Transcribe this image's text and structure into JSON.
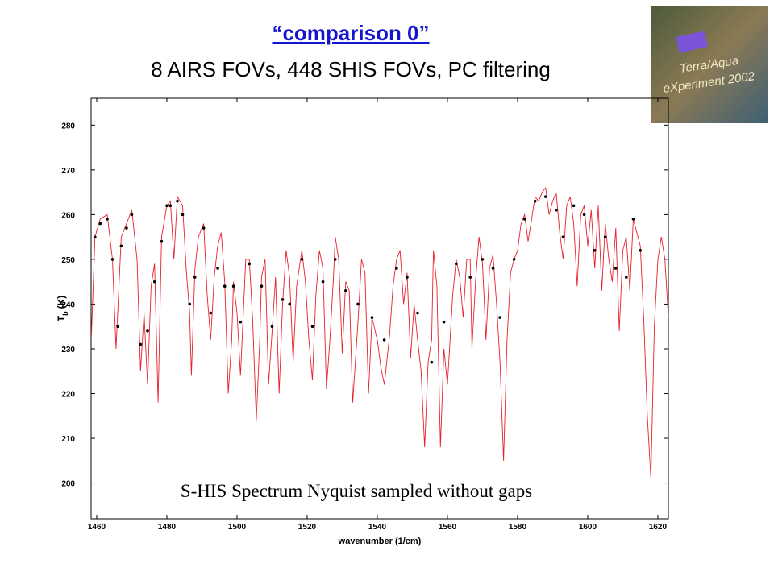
{
  "chart_data": {
    "type": "line",
    "title": "“comparison 0”",
    "subtitle": "8 AIRS FOVs, 448 SHIS FOVs, PC filtering",
    "logo_text": [
      "Terra/Aqua",
      "eXperiment 2002"
    ],
    "annotation": "S-HIS Spectrum Nyquist sampled without gaps",
    "xlabel": "wavenumber (1/cm)",
    "ylabel": "T",
    "ylabel_sub": "b",
    "ylabel_unit": "(K)",
    "xlim": [
      1458.4,
      1623
    ],
    "ylim": [
      192,
      286
    ],
    "xticks": [
      1460,
      1480,
      1500,
      1520,
      1540,
      1560,
      1580,
      1600,
      1620
    ],
    "yticks": [
      200,
      210,
      220,
      230,
      240,
      250,
      260,
      270,
      280
    ],
    "series": [
      {
        "color": "#e8202a",
        "style": "line",
        "x": [
          1458.5,
          1459.5,
          1461,
          1463,
          1464.5,
          1465.5,
          1467,
          1468.5,
          1470,
          1471.5,
          1472.5,
          1473.5,
          1474.5,
          1475.5,
          1476.5,
          1477.5,
          1478.5,
          1480,
          1481,
          1482,
          1483,
          1484.5,
          1485.5,
          1486.5,
          1487,
          1488,
          1489,
          1490.5,
          1491.5,
          1492.5,
          1493.5,
          1494.5,
          1495.5,
          1496.5,
          1497.5,
          1498.5,
          1499,
          1500,
          1501,
          1502.5,
          1503.5,
          1504.5,
          1505.5,
          1506.5,
          1507,
          1508,
          1509,
          1510,
          1511,
          1512,
          1513,
          1514,
          1515,
          1516,
          1517,
          1518.5,
          1519.5,
          1520.5,
          1521.5,
          1522.5,
          1523.5,
          1524.5,
          1525.5,
          1526.5,
          1527.5,
          1528,
          1529,
          1530,
          1531,
          1532,
          1533,
          1534.5,
          1535.5,
          1536.5,
          1537.5,
          1538.5,
          1540,
          1541,
          1542,
          1543.5,
          1544.5,
          1545.5,
          1546.5,
          1547.5,
          1548.5,
          1549.5,
          1550.5,
          1551.5,
          1552.5,
          1553.5,
          1554.5,
          1555.5,
          1556,
          1557,
          1558,
          1559,
          1560,
          1561.5,
          1562.5,
          1563.5,
          1564.5,
          1565.5,
          1566.5,
          1567,
          1568,
          1569,
          1570,
          1571,
          1572,
          1573,
          1574,
          1575,
          1576,
          1577,
          1578,
          1579,
          1580,
          1581,
          1582,
          1583,
          1584,
          1585,
          1586,
          1587,
          1588,
          1589,
          1590,
          1591,
          1592,
          1593,
          1594,
          1595,
          1596,
          1597,
          1598,
          1599,
          1600,
          1601,
          1602,
          1603,
          1604,
          1605,
          1606,
          1607,
          1608,
          1609,
          1610,
          1611,
          1612,
          1613,
          1614,
          1615,
          1616,
          1617,
          1618,
          1619,
          1620,
          1621,
          1622,
          1623
        ],
        "values": [
          233,
          255,
          259,
          260,
          250,
          230,
          255,
          258,
          261,
          250,
          225,
          238,
          222,
          244,
          249,
          218,
          255,
          262,
          263,
          250,
          264,
          262,
          248,
          238,
          224,
          248,
          255,
          258,
          242,
          232,
          246,
          253,
          256,
          245,
          220,
          232,
          245,
          238,
          224,
          250,
          250,
          236,
          214,
          232,
          246,
          250,
          222,
          234,
          246,
          220,
          240,
          252,
          246,
          227,
          244,
          252,
          245,
          232,
          223,
          242,
          252,
          248,
          221,
          232,
          246,
          255,
          250,
          229,
          245,
          243,
          218,
          236,
          250,
          247,
          220,
          237,
          232,
          226,
          222,
          233,
          244,
          250,
          252,
          240,
          247,
          228,
          240,
          232,
          225,
          208,
          227,
          232,
          252,
          244,
          208,
          230,
          222,
          242,
          250,
          246,
          237,
          250,
          250,
          230,
          245,
          255,
          249,
          232,
          248,
          251,
          240,
          227,
          205,
          232,
          247,
          250,
          252,
          258,
          260,
          254,
          259,
          264,
          263,
          265,
          266,
          260,
          263,
          265,
          256,
          250,
          262,
          264,
          258,
          244,
          260,
          262,
          253,
          261,
          248,
          262,
          243,
          258,
          250,
          245,
          257,
          234,
          252,
          255,
          243,
          259,
          256,
          253,
          236,
          215,
          201,
          235,
          250,
          255,
          250,
          237
        ]
      },
      {
        "color": "#000000",
        "style": "dots",
        "x": [
          1459.5,
          1461,
          1463,
          1464.5,
          1466,
          1467,
          1468.5,
          1470,
          1472.5,
          1474.5,
          1476.5,
          1478.5,
          1480,
          1481,
          1483,
          1484.5,
          1486.5,
          1488,
          1490.5,
          1492.5,
          1494.5,
          1496.5,
          1499,
          1501,
          1503.5,
          1507,
          1510,
          1513,
          1515,
          1518.5,
          1521.5,
          1524.5,
          1528,
          1531,
          1534.5,
          1538.5,
          1542,
          1545.5,
          1548.5,
          1551.5,
          1555.5,
          1559,
          1562.5,
          1566.5,
          1570,
          1573,
          1575,
          1579,
          1582,
          1585,
          1588,
          1591,
          1593,
          1596,
          1599,
          1602,
          1605,
          1608,
          1611,
          1613,
          1615
        ],
        "values": [
          255,
          258,
          259,
          250,
          235,
          253,
          257,
          260,
          231,
          234,
          245,
          254,
          262,
          262,
          263,
          260,
          240,
          246,
          257,
          238,
          248,
          244,
          244,
          236,
          249,
          244,
          235,
          241,
          240,
          250,
          235,
          245,
          250,
          243,
          240,
          237,
          232,
          248,
          246,
          238,
          227,
          236,
          249,
          246,
          250,
          248,
          237,
          250,
          259,
          263,
          264,
          261,
          255,
          262,
          260,
          252,
          255,
          248,
          246,
          259,
          252
        ]
      }
    ]
  }
}
